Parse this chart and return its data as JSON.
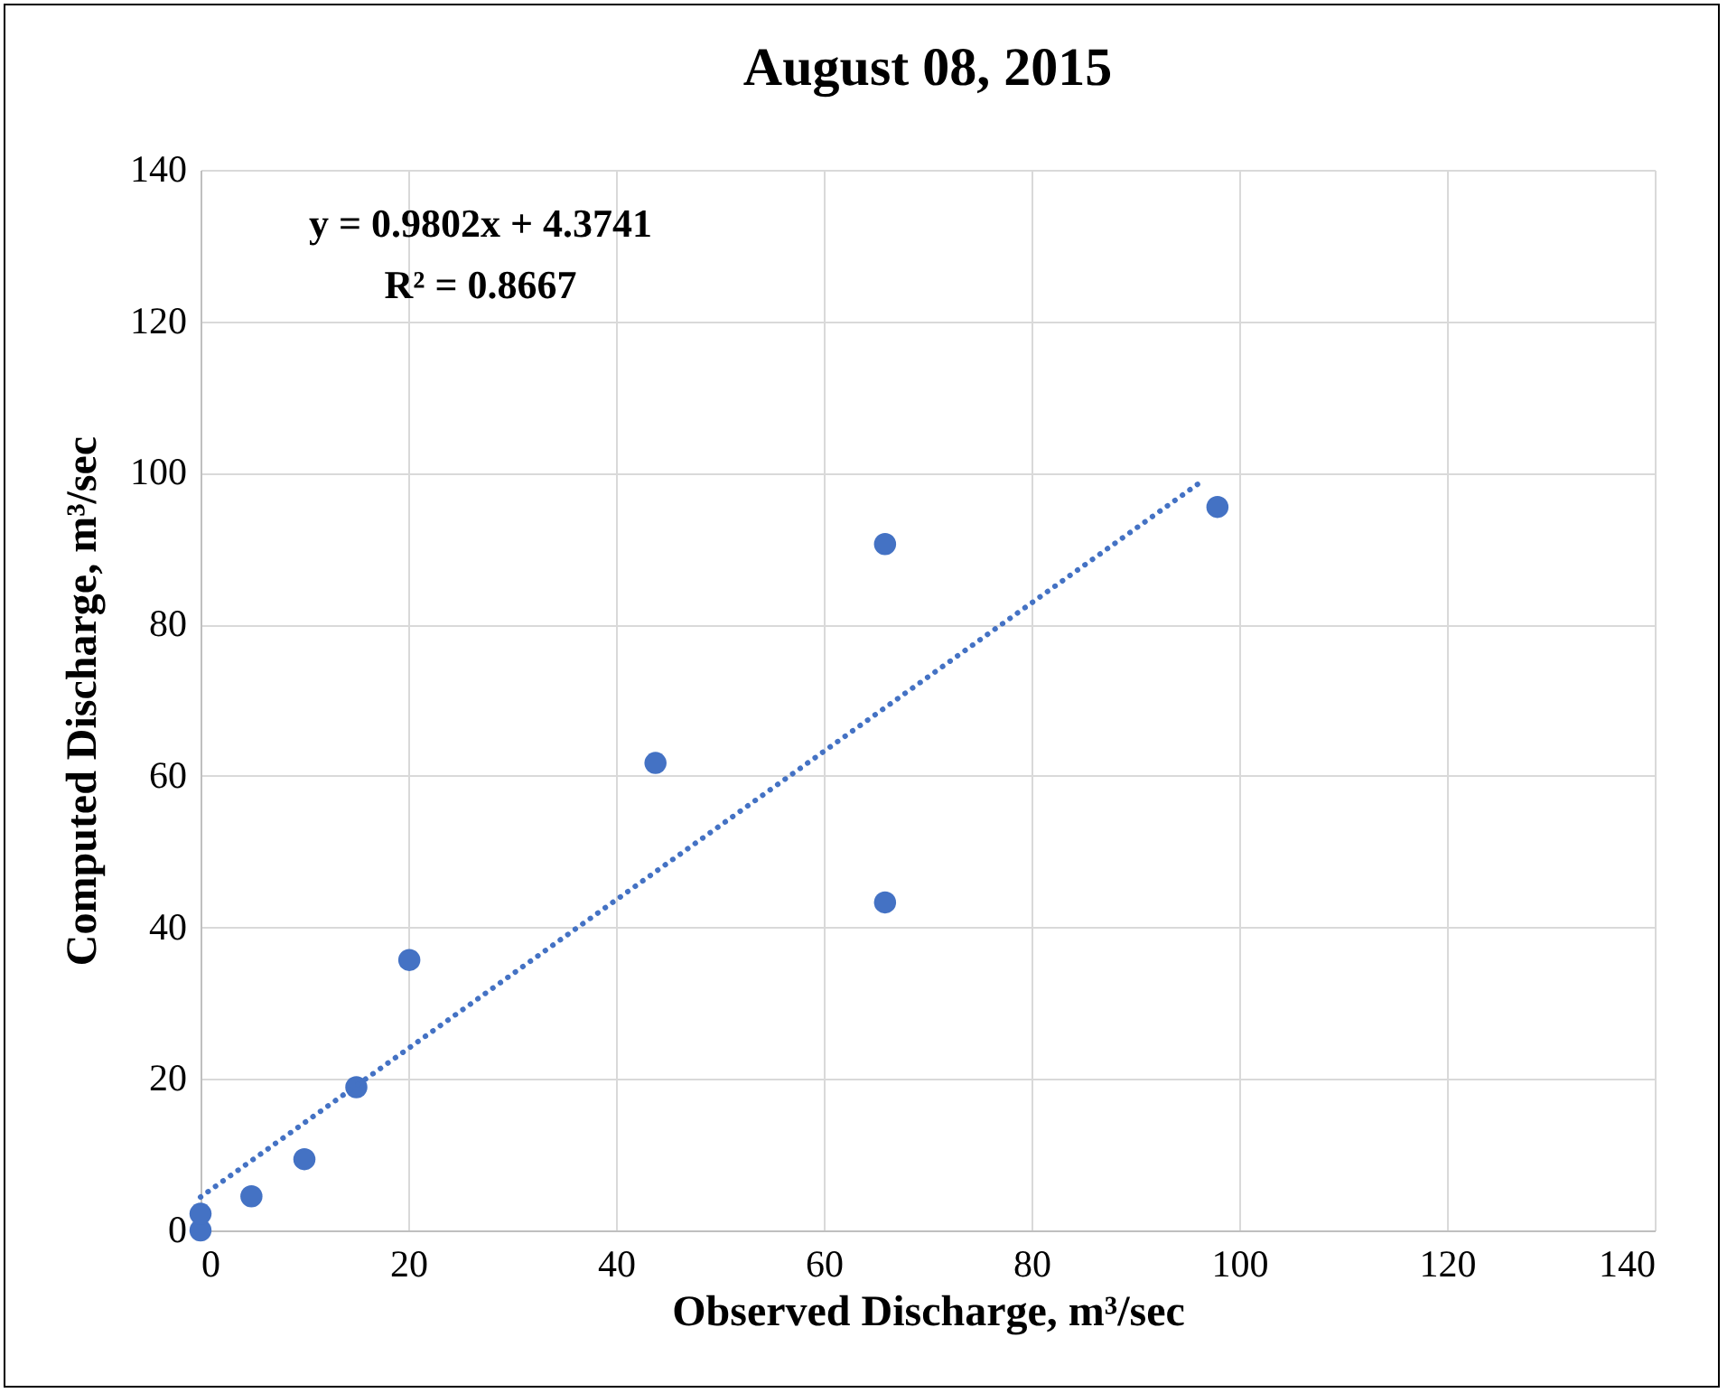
{
  "chart_data": {
    "type": "scatter",
    "title": "August 08, 2015",
    "xlabel": "Observed Discharge, m³/sec",
    "ylabel": "Computed Discharge, m³/sec",
    "series": [
      {
        "color": "#4472c4",
        "marker": "circle",
        "x": [
          0,
          0,
          4.9,
          10,
          15,
          20.1,
          43.8,
          65.9,
          65.9,
          97.9
        ],
        "values": [
          0,
          2.2,
          4.5,
          9.4,
          18.9,
          35.7,
          61.7,
          90.6,
          43.3,
          95.5
        ]
      },
      {
        "type": "line",
        "color": "#4472c4",
        "line_style": "dotted",
        "x": [
          0,
          96.3
        ],
        "values": [
          4.4,
          98.8
        ]
      }
    ],
    "annotations": [
      "y = 0.9802x + 4.3741",
      "R² = 0.8667"
    ],
    "xlim": [
      0,
      140
    ],
    "xticks": [
      0,
      20,
      40,
      60,
      80,
      100,
      120,
      140
    ],
    "ylim": [
      0,
      140
    ],
    "yticks": [
      0,
      20,
      40,
      60,
      80,
      100,
      120,
      140
    ],
    "grid": true
  }
}
